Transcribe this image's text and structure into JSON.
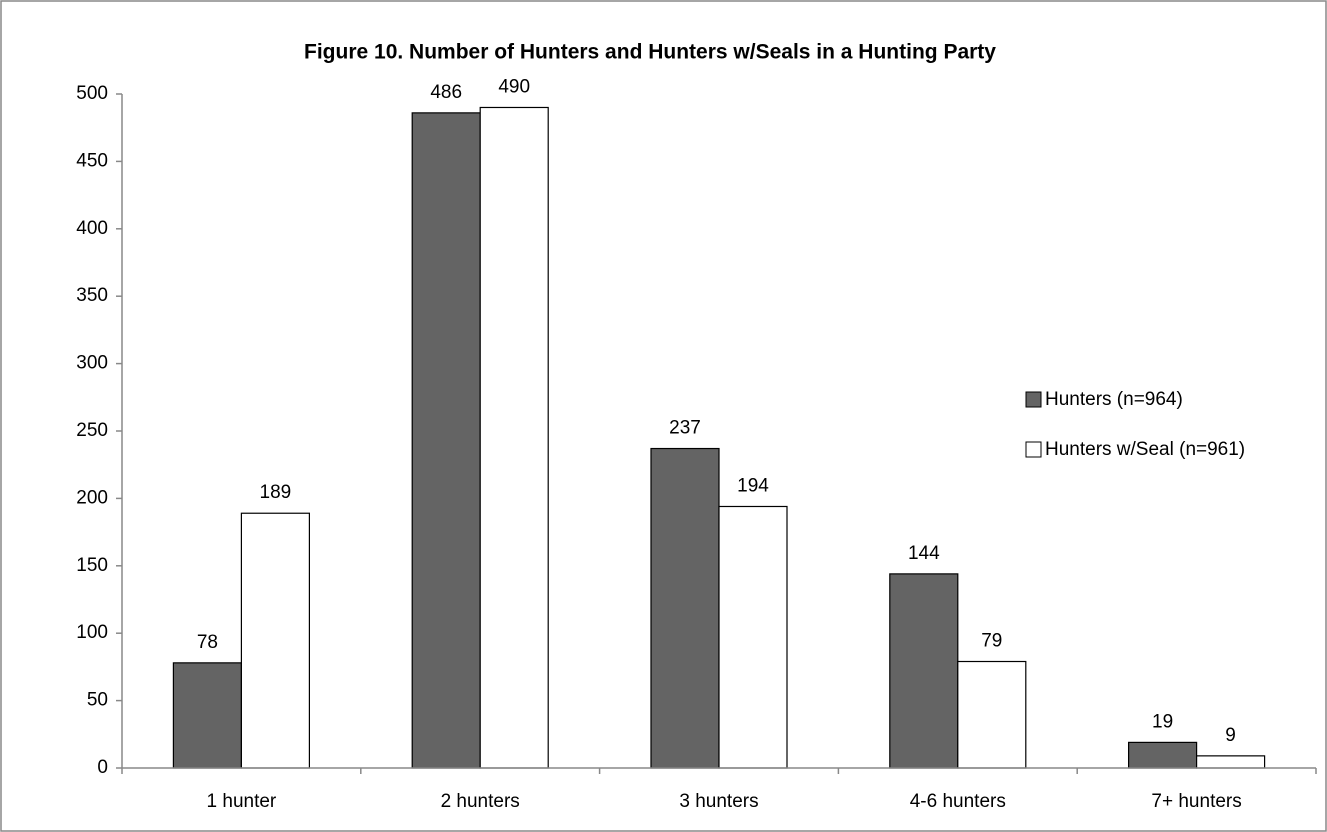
{
  "chart_data": {
    "type": "bar",
    "title": "Figure 10. Number of Hunters and Hunters w/Seals in a Hunting Party",
    "categories": [
      "1 hunter",
      "2 hunters",
      "3 hunters",
      "4-6 hunters",
      "7+ hunters"
    ],
    "series": [
      {
        "name": "Hunters (n=964)",
        "color": "#646464",
        "values": [
          78,
          486,
          237,
          144,
          19
        ]
      },
      {
        "name": "Hunters w/Seal (n=961)",
        "color": "#ffffff",
        "values": [
          189,
          490,
          194,
          79,
          9
        ]
      }
    ],
    "ylim": [
      0,
      500
    ],
    "yticks": [
      0,
      50,
      100,
      150,
      200,
      250,
      300,
      350,
      400,
      450,
      500
    ],
    "grid": false,
    "legend": "right"
  }
}
